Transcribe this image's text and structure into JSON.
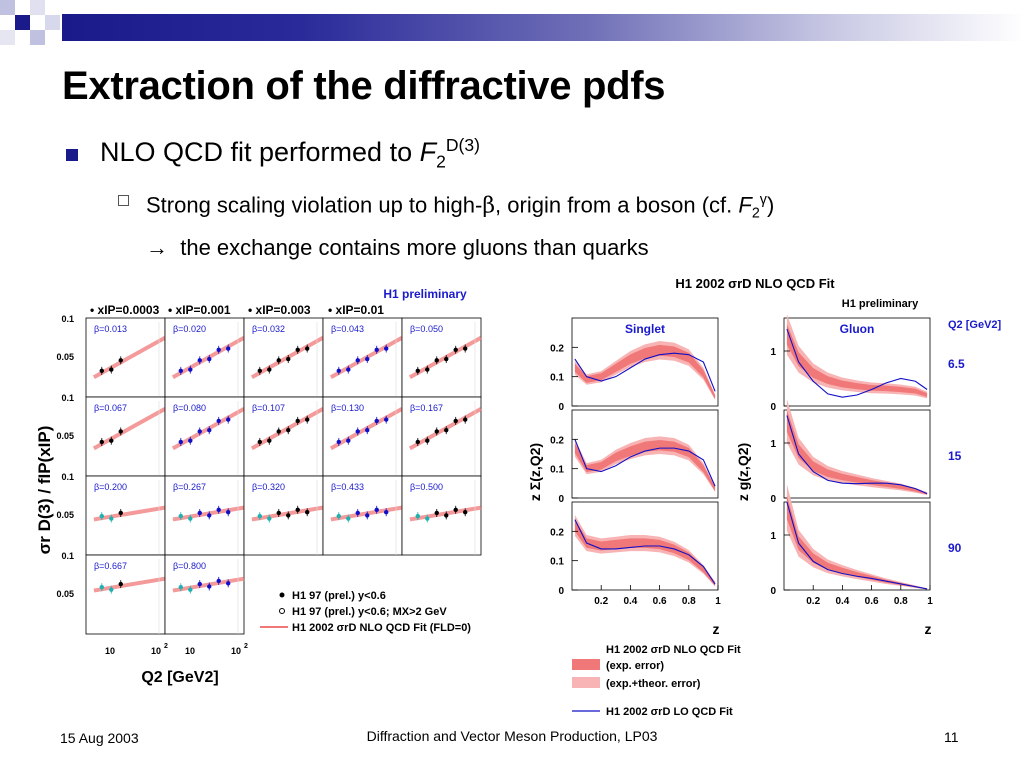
{
  "slide": {
    "title": "Extraction of the diffractive pdfs",
    "bullet1": {
      "text": "NLO QCD fit performed to ",
      "italic": "F",
      "sub": "2",
      "sup": "D(3)"
    },
    "bullet2": {
      "line1_text": "Strong scaling violation up to high-",
      "beta": "β",
      "line1_rest": ", origin from a boson (cf. ",
      "f": "F",
      "f_sub": "2",
      "f_sup": "γ",
      "close": ")",
      "arrow": "→",
      "line2_text": "  the exchange contains more gluons than quarks"
    },
    "footer": {
      "date": "15 Aug 2003",
      "center": "Diffraction and Vector Meson Production, LP03",
      "page": "11"
    }
  },
  "colors": {
    "navy": "#1a1a8a",
    "band_dark": "#f07878",
    "band_light": "#f8b4b4",
    "blue": "#1010c8",
    "cyan": "#20b0b0",
    "label_blue": "#1a1acc"
  },
  "chart_data": [
    {
      "type": "scatter",
      "title": "H1 preliminary",
      "ylabel": "σr D(3) / fIP(xIP)",
      "xlabel": "Q2 [GeV2]",
      "column_headers": [
        "xIP=0.0003",
        "xIP=0.001",
        "xIP=0.003",
        "xIP=0.01"
      ],
      "y_ticks_top": [
        "0.1",
        "0.05"
      ],
      "x_ticks": [
        "10",
        "10",
        "2"
      ],
      "beta_labels": [
        [
          "β=0.013",
          "β=0.020",
          "β=0.032",
          "β=0.043",
          "β=0.050"
        ],
        [
          "β=0.067",
          "β=0.080",
          "β=0.107",
          "β=0.130",
          "β=0.167"
        ],
        [
          "β=0.200",
          "β=0.267",
          "β=0.320",
          "β=0.433",
          "β=0.500"
        ],
        [
          "β=0.667",
          "β=0.800"
        ]
      ],
      "legend": [
        "H1 97 (prel.) y<0.6",
        "H1 97 (prel.) y<0.6; MX>2 GeV",
        "H1 2002 σrD NLO QCD Fit (FLD=0)"
      ]
    },
    {
      "type": "line",
      "title": "H1 2002 σrD NLO QCD Fit",
      "subtitle": "H1 preliminary",
      "panels": [
        "Singlet",
        "Gluon"
      ],
      "ylabel_left": "z Σ(z,Q2)",
      "ylabel_right": "z g(z,Q2)",
      "xlabel": "z",
      "x_ticks": [
        "0.2",
        "0.4",
        "0.6",
        "0.8",
        "1"
      ],
      "y_ticks_left": [
        "0.2",
        "0.1",
        "0"
      ],
      "y_ticks_right": [
        "1",
        "0"
      ],
      "q2_header": "Q2 [GeV2]",
      "q2_values": [
        "6.5",
        "15",
        "90"
      ],
      "xlim": [
        0,
        1
      ],
      "singlet_ylim": [
        0,
        0.3
      ],
      "gluon_ylim": [
        0,
        1.6
      ],
      "z": [
        0.02,
        0.1,
        0.2,
        0.3,
        0.4,
        0.5,
        0.6,
        0.7,
        0.8,
        0.9,
        0.98
      ],
      "series": [
        {
          "name": "H1 2002 σrD NLO QCD Fit",
          "panel": "singlet",
          "q2": "6.5",
          "values": [
            0.13,
            0.09,
            0.1,
            0.13,
            0.16,
            0.18,
            0.19,
            0.185,
            0.165,
            0.11,
            0.03
          ]
        },
        {
          "name": "H1 2002 σrD LO QCD Fit",
          "panel": "singlet",
          "q2": "6.5",
          "values": [
            0.16,
            0.1,
            0.085,
            0.1,
            0.13,
            0.16,
            0.175,
            0.18,
            0.175,
            0.15,
            0.05
          ]
        },
        {
          "name": "H1 2002 σrD NLO QCD Fit",
          "panel": "singlet",
          "q2": "15",
          "values": [
            0.17,
            0.1,
            0.11,
            0.14,
            0.16,
            0.175,
            0.18,
            0.175,
            0.155,
            0.1,
            0.03
          ]
        },
        {
          "name": "H1 2002 σrD LO QCD Fit",
          "panel": "singlet",
          "q2": "15",
          "values": [
            0.2,
            0.1,
            0.09,
            0.11,
            0.14,
            0.16,
            0.17,
            0.17,
            0.16,
            0.13,
            0.04
          ]
        },
        {
          "name": "H1 2002 σrD NLO QCD Fit",
          "panel": "singlet",
          "q2": "90",
          "values": [
            0.22,
            0.16,
            0.15,
            0.155,
            0.16,
            0.16,
            0.155,
            0.14,
            0.115,
            0.07,
            0.02
          ]
        },
        {
          "name": "H1 2002 σrD LO QCD Fit",
          "panel": "singlet",
          "q2": "90",
          "values": [
            0.24,
            0.16,
            0.14,
            0.14,
            0.145,
            0.15,
            0.15,
            0.14,
            0.12,
            0.08,
            0.02
          ]
        },
        {
          "name": "H1 2002 σrD NLO QCD Fit",
          "panel": "gluon",
          "q2": "6.5",
          "values": [
            1.3,
            0.85,
            0.6,
            0.47,
            0.4,
            0.36,
            0.33,
            0.32,
            0.3,
            0.27,
            0.2
          ]
        },
        {
          "name": "H1 2002 σrD LO QCD Fit",
          "panel": "gluon",
          "q2": "6.5",
          "values": [
            1.4,
            0.8,
            0.45,
            0.22,
            0.16,
            0.2,
            0.3,
            0.42,
            0.5,
            0.45,
            0.3
          ]
        },
        {
          "name": "H1 2002 σrD NLO QCD Fit",
          "panel": "gluon",
          "q2": "15",
          "values": [
            1.4,
            0.85,
            0.58,
            0.45,
            0.38,
            0.33,
            0.28,
            0.24,
            0.2,
            0.14,
            0.08
          ]
        },
        {
          "name": "H1 2002 σrD LO QCD Fit",
          "panel": "gluon",
          "q2": "15",
          "values": [
            1.5,
            0.8,
            0.48,
            0.32,
            0.27,
            0.26,
            0.27,
            0.27,
            0.24,
            0.17,
            0.08
          ]
        },
        {
          "name": "H1 2002 σrD NLO QCD Fit",
          "panel": "gluon",
          "q2": "90",
          "values": [
            1.5,
            0.85,
            0.58,
            0.43,
            0.35,
            0.28,
            0.22,
            0.16,
            0.11,
            0.06,
            0.02
          ]
        },
        {
          "name": "H1 2002 σrD LO QCD Fit",
          "panel": "gluon",
          "q2": "90",
          "values": [
            1.6,
            0.85,
            0.52,
            0.37,
            0.3,
            0.25,
            0.21,
            0.16,
            0.11,
            0.06,
            0.02
          ]
        }
      ],
      "legend": [
        "H1 2002 σrD NLO QCD Fit",
        "(exp. error)",
        "(exp.+theor. error)",
        "H1 2002 σrD LO QCD Fit"
      ]
    }
  ]
}
